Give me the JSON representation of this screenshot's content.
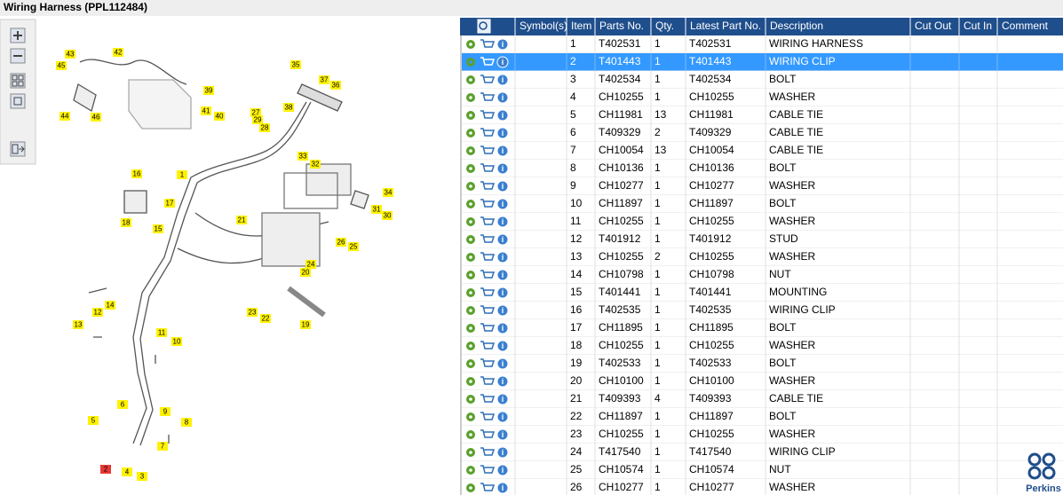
{
  "header": {
    "title": "Wiring Harness (PPL112484)"
  },
  "table": {
    "columns": [
      "Symbol(s)",
      "Item",
      "Parts No.",
      "Qty.",
      "Latest Part No.",
      "Description",
      "Cut Out",
      "Cut In",
      "Comment"
    ],
    "rows": [
      [
        1,
        "T402531",
        1,
        "T402531",
        "WIRING HARNESS"
      ],
      [
        2,
        "T401443",
        1,
        "T401443",
        "WIRING CLIP"
      ],
      [
        3,
        "T402534",
        1,
        "T402534",
        "BOLT"
      ],
      [
        4,
        "CH10255",
        1,
        "CH10255",
        "WASHER"
      ],
      [
        5,
        "CH11981",
        13,
        "CH11981",
        "CABLE TIE"
      ],
      [
        6,
        "T409329",
        2,
        "T409329",
        "CABLE TIE"
      ],
      [
        7,
        "CH10054",
        13,
        "CH10054",
        "CABLE TIE"
      ],
      [
        8,
        "CH10136",
        1,
        "CH10136",
        "BOLT"
      ],
      [
        9,
        "CH10277",
        1,
        "CH10277",
        "WASHER"
      ],
      [
        10,
        "CH11897",
        1,
        "CH11897",
        "BOLT"
      ],
      [
        11,
        "CH10255",
        1,
        "CH10255",
        "WASHER"
      ],
      [
        12,
        "T401912",
        1,
        "T401912",
        "STUD"
      ],
      [
        13,
        "CH10255",
        2,
        "CH10255",
        "WASHER"
      ],
      [
        14,
        "CH10798",
        1,
        "CH10798",
        "NUT"
      ],
      [
        15,
        "T401441",
        1,
        "T401441",
        "MOUNTING"
      ],
      [
        16,
        "T402535",
        1,
        "T402535",
        "WIRING CLIP"
      ],
      [
        17,
        "CH11895",
        1,
        "CH11895",
        "BOLT"
      ],
      [
        18,
        "CH10255",
        1,
        "CH10255",
        "WASHER"
      ],
      [
        19,
        "T402533",
        1,
        "T402533",
        "BOLT"
      ],
      [
        20,
        "CH10100",
        1,
        "CH10100",
        "WASHER"
      ],
      [
        21,
        "T409393",
        4,
        "T409393",
        "CABLE TIE"
      ],
      [
        22,
        "CH11897",
        1,
        "CH11897",
        "BOLT"
      ],
      [
        23,
        "CH10255",
        1,
        "CH10255",
        "WASHER"
      ],
      [
        24,
        "T417540",
        1,
        "T417540",
        "WIRING CLIP"
      ],
      [
        25,
        "CH10574",
        1,
        "CH10574",
        "NUT"
      ],
      [
        26,
        "CH10277",
        1,
        "CH10277",
        "WASHER"
      ]
    ]
  },
  "diagram": {
    "callouts": [
      43,
      42,
      45,
      35,
      37,
      36,
      39,
      38,
      44,
      46,
      41,
      40,
      27,
      29,
      28,
      33,
      32,
      16,
      1,
      34,
      17,
      31,
      30,
      18,
      21,
      15,
      26,
      25,
      24,
      20,
      14,
      12,
      13,
      23,
      22,
      19,
      11,
      10,
      6,
      9,
      8,
      5,
      7,
      4,
      3,
      2
    ]
  },
  "logo": {
    "text": "Perkins"
  }
}
